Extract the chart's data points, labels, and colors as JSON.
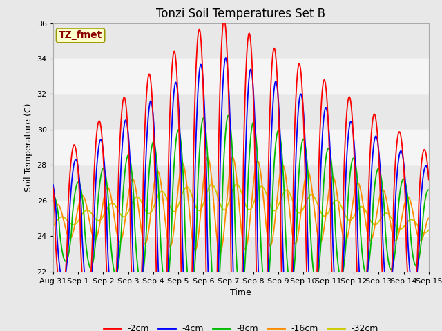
{
  "title": "Tonzi Soil Temperatures Set B",
  "xlabel": "Time",
  "ylabel": "Soil Temperature (C)",
  "ylim": [
    22,
    36
  ],
  "yticks": [
    22,
    24,
    26,
    28,
    30,
    32,
    34,
    36
  ],
  "annotation_text": "TZ_fmet",
  "annotation_color": "#8B0000",
  "annotation_bg": "#FFFFCC",
  "fig_bg": "#E8E8E8",
  "plot_bg": "#F5F5F5",
  "colors": {
    "-2cm": "#FF0000",
    "-4cm": "#0000FF",
    "-8cm": "#00BB00",
    "-16cm": "#FF8C00",
    "-32cm": "#CCCC00"
  },
  "xtick_labels": [
    "Aug 31",
    "Sep 1",
    "Sep 2",
    "Sep 3",
    "Sep 4",
    "Sep 5",
    "Sep 6",
    "Sep 7",
    "Sep 8",
    "Sep 9",
    "Sep 10",
    "Sep 11",
    "Sep 12",
    "Sep 13",
    "Sep 14",
    "Sep 15"
  ],
  "n_days": 15,
  "pts_per_day": 96
}
